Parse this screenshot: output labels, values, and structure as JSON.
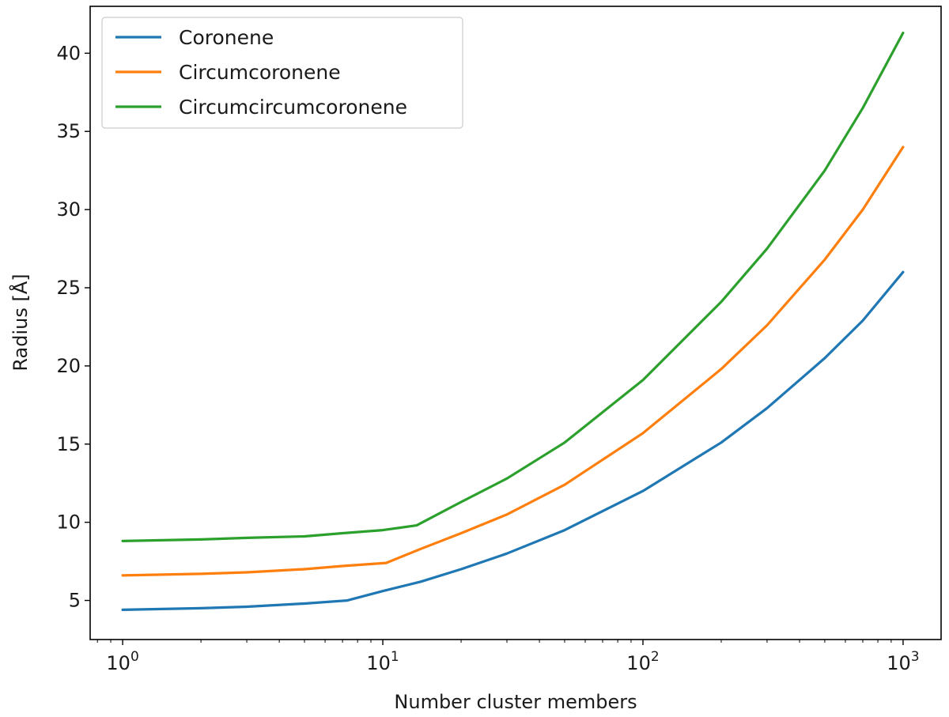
{
  "chart_data": {
    "type": "line",
    "title": "",
    "xlabel": "Number cluster members",
    "ylabel": "Radius [Å]",
    "xscale": "log",
    "xlim": [
      0.75,
      1400
    ],
    "ylim": [
      2.5,
      43
    ],
    "xticks": [
      {
        "value": 1,
        "base": "10",
        "exp": "0"
      },
      {
        "value": 10,
        "base": "10",
        "exp": "1"
      },
      {
        "value": 100,
        "base": "10",
        "exp": "2"
      },
      {
        "value": 1000,
        "base": "10",
        "exp": "3"
      }
    ],
    "yticks": [
      5,
      10,
      15,
      20,
      25,
      30,
      35,
      40
    ],
    "grid": false,
    "legend_position": "top-left",
    "series": [
      {
        "name": "Coronene",
        "color": "#1f77b4",
        "x": [
          1,
          2,
          3,
          5,
          7.3,
          10,
          14,
          20,
          30,
          50,
          100,
          200,
          300,
          500,
          700,
          1000
        ],
        "y": [
          4.4,
          4.5,
          4.6,
          4.8,
          5.0,
          5.6,
          6.2,
          7.0,
          8.0,
          9.5,
          12.0,
          15.1,
          17.3,
          20.5,
          22.9,
          26.0
        ]
      },
      {
        "name": "Circumcoronene",
        "color": "#ff7f0e",
        "x": [
          1,
          2,
          3,
          5,
          7,
          10.3,
          14,
          20,
          30,
          50,
          100,
          200,
          300,
          500,
          700,
          1000
        ],
        "y": [
          6.6,
          6.7,
          6.8,
          7.0,
          7.2,
          7.4,
          8.3,
          9.3,
          10.5,
          12.4,
          15.7,
          19.8,
          22.6,
          26.8,
          30.0,
          34.0
        ]
      },
      {
        "name": "Circumcircumcoronene",
        "color": "#2ca02c",
        "x": [
          1,
          2,
          3,
          5,
          7,
          10,
          13.5,
          20,
          30,
          50,
          100,
          200,
          300,
          500,
          700,
          1000
        ],
        "y": [
          8.8,
          8.9,
          9.0,
          9.1,
          9.3,
          9.5,
          9.8,
          11.3,
          12.8,
          15.1,
          19.1,
          24.1,
          27.5,
          32.5,
          36.5,
          41.3
        ]
      }
    ]
  }
}
